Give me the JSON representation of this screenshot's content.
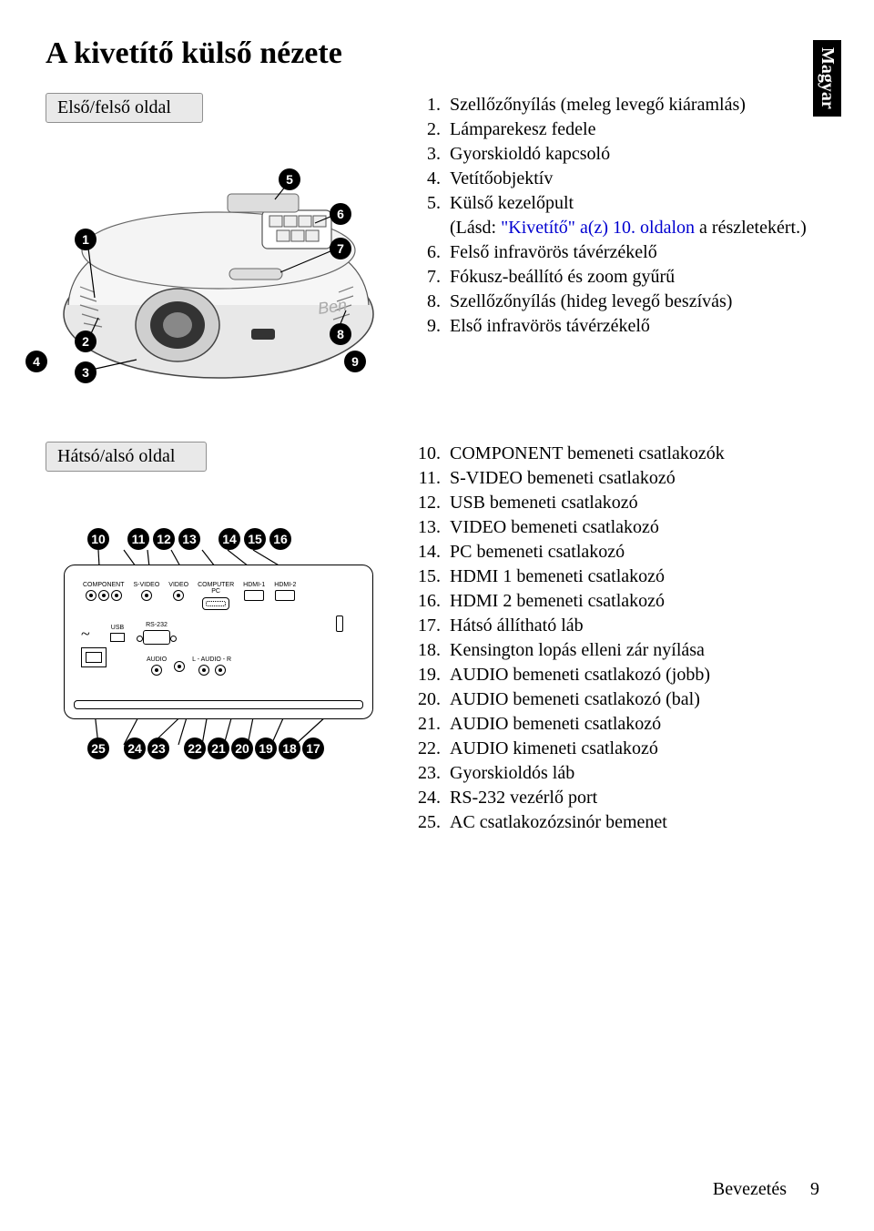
{
  "page_title": "A kivetítő külső nézete",
  "lang_tag": "Magyar",
  "front_label": "Első/felső oldal",
  "rear_label": "Hátsó/alsó oldal",
  "markers": {
    "m4": "4",
    "m9": "9"
  },
  "front_callouts": {
    "c1": "1",
    "c2": "2",
    "c3": "3",
    "c5": "5",
    "c6": "6",
    "c7": "7",
    "c8": "8"
  },
  "rear_top_callouts": [
    "10",
    "11",
    "12",
    "13",
    "14",
    "15",
    "16"
  ],
  "rear_bottom_callouts": [
    "25",
    "24",
    "23",
    "22",
    "21",
    "20",
    "19",
    "18",
    "17"
  ],
  "list1": [
    {
      "n": "1.",
      "t": "Szellőzőnyílás (meleg levegő kiáramlás)"
    },
    {
      "n": "2.",
      "t": "Lámparekesz fedele"
    },
    {
      "n": "3.",
      "t": "Gyorskioldó kapcsoló"
    },
    {
      "n": "4.",
      "t": "Vetítőobjektív"
    },
    {
      "n": "5.",
      "t": "Külső kezelőpult",
      "extra_prefix": "(Lásd: ",
      "extra_link": "\"Kivetítő\" a(z) 10. oldalon",
      "extra_suffix": " a részletekért.)"
    },
    {
      "n": "6.",
      "t": "Felső infravörös távérzékelő"
    },
    {
      "n": "7.",
      "t": "Fókusz-beállító és zoom gyűrű"
    },
    {
      "n": "8.",
      "t": "Szellőzőnyílás (hideg levegő beszívás)"
    },
    {
      "n": "9.",
      "t": "Első infravörös távérzékelő"
    }
  ],
  "list2": [
    {
      "n": "10.",
      "t": "COMPONENT bemeneti csatlakozók"
    },
    {
      "n": "11.",
      "t": "S-VIDEO bemeneti csatlakozó"
    },
    {
      "n": "12.",
      "t": "USB bemeneti csatlakozó"
    },
    {
      "n": "13.",
      "t": "VIDEO bemeneti csatlakozó"
    },
    {
      "n": "14.",
      "t": "PC bemeneti csatlakozó"
    },
    {
      "n": "15.",
      "t": "HDMI 1 bemeneti csatlakozó"
    },
    {
      "n": "16.",
      "t": "HDMI 2 bemeneti csatlakozó"
    },
    {
      "n": "17.",
      "t": "Hátsó állítható láb"
    },
    {
      "n": "18.",
      "t": "Kensington lopás elleni zár nyílása"
    },
    {
      "n": "19.",
      "t": "AUDIO bemeneti csatlakozó (jobb)"
    },
    {
      "n": "20.",
      "t": "AUDIO bemeneti csatlakozó (bal)"
    },
    {
      "n": "21.",
      "t": "AUDIO bemeneti csatlakozó"
    },
    {
      "n": "22.",
      "t": "AUDIO kimeneti csatlakozó"
    },
    {
      "n": "23.",
      "t": "Gyorskioldós láb"
    },
    {
      "n": "24.",
      "t": "RS-232 vezérlő port"
    },
    {
      "n": "25.",
      "t": "AC csatlakozózsinór bemenet"
    }
  ],
  "port_labels": {
    "component": "COMPONENT",
    "svideo": "S-VIDEO",
    "video": "VIDEO",
    "pc": "COMPUTER\nPC",
    "hdmi1": "HDMI-1",
    "hdmi2": "HDMI-2",
    "usb": "USB",
    "rs232": "RS-232",
    "audio": "AUDIO",
    "laudior": "L - AUDIO - R"
  },
  "footer": {
    "label": "Bevezetés",
    "page": "9"
  },
  "colors": {
    "bg": "#ffffff",
    "text": "#000000",
    "link": "#0000d0",
    "label_bg": "#e9e9e9",
    "label_border": "#909090"
  }
}
